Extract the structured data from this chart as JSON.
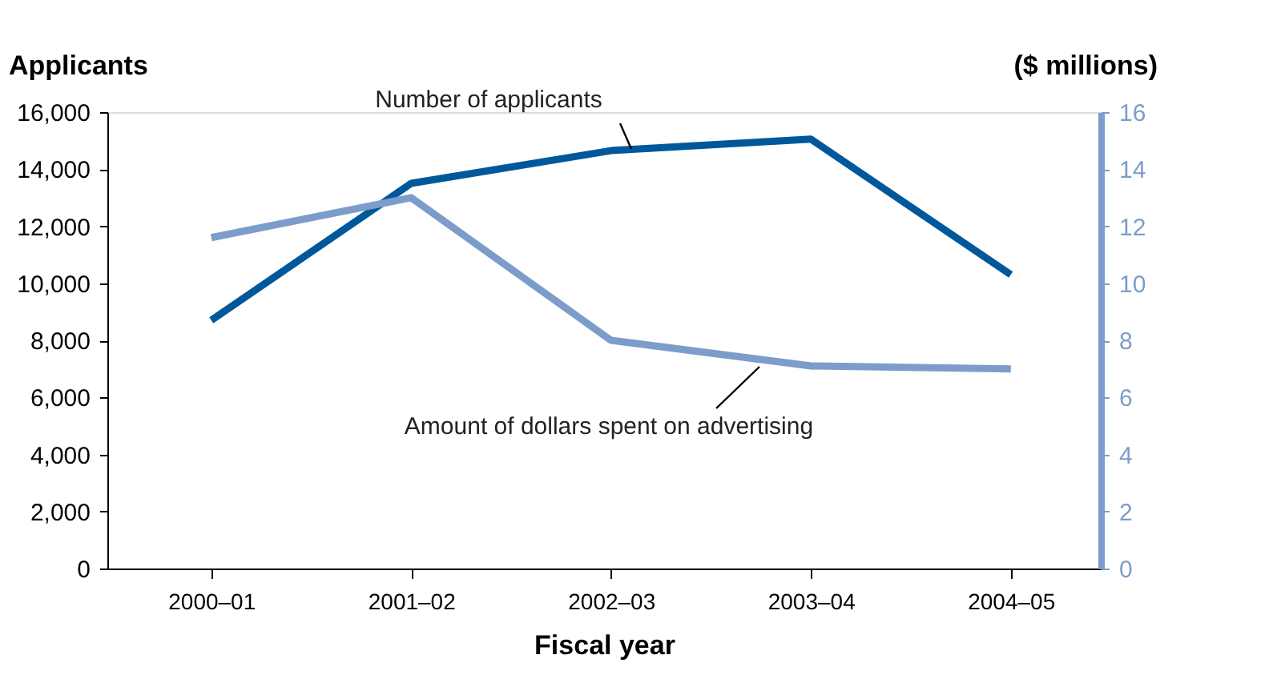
{
  "chart_data": {
    "type": "line",
    "xlabel": "Fiscal year",
    "ylabel": "Applicants",
    "y2label": "($ millions)",
    "categories": [
      "2000–01",
      "2001–02",
      "2002–03",
      "2003–04",
      "2004–05"
    ],
    "series": [
      {
        "name": "Number of applicants",
        "color": "#00589b",
        "values": [
          8700,
          13500,
          14650,
          15050,
          10300
        ]
      },
      {
        "name": "Amount of dollars spent on advertising",
        "color": "#7c9dca",
        "axis": "y2",
        "values": [
          11.6,
          13.0,
          8.0,
          7.1,
          7.0
        ]
      }
    ],
    "ylim": [
      0,
      16000
    ],
    "yticks": [
      {
        "value": 0,
        "label": "0"
      },
      {
        "value": 2000,
        "label": "2,000"
      },
      {
        "value": 4000,
        "label": "4,000"
      },
      {
        "value": 6000,
        "label": "6,000"
      },
      {
        "value": 8000,
        "label": "8,000"
      },
      {
        "value": 10000,
        "label": "10,000"
      },
      {
        "value": 12000,
        "label": "12,000"
      },
      {
        "value": 14000,
        "label": "14,000"
      },
      {
        "value": 16000,
        "label": "16,000"
      }
    ],
    "y2lim": [
      0,
      16
    ],
    "y2ticks": [
      0,
      2,
      4,
      6,
      8,
      10,
      12,
      14,
      16
    ],
    "grid": false,
    "marker": "none",
    "line_style": "solid"
  }
}
